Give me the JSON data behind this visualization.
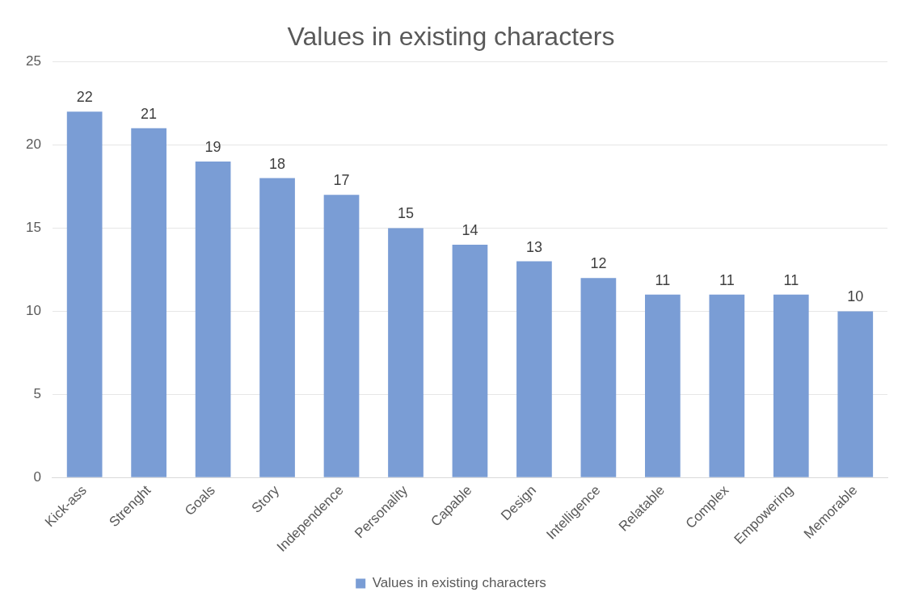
{
  "chart_data": {
    "type": "bar",
    "title": "Values in existing characters",
    "categories": [
      "Kick-ass",
      "Strenght",
      "Goals",
      "Story",
      "Independence",
      "Personality",
      "Capable",
      "Design",
      "Intelligence",
      "Relatable",
      "Complex",
      "Empowering",
      "Memorable"
    ],
    "series": [
      {
        "name": "Values in existing characters",
        "color": "#7a9dd5",
        "values": [
          22,
          21,
          19,
          18,
          17,
          15,
          14,
          13,
          12,
          11,
          11,
          11,
          10
        ]
      }
    ],
    "ylim": [
      0,
      25
    ],
    "yticks": [
      0,
      5,
      10,
      15,
      20,
      25
    ],
    "grid": "y",
    "legend": "bottom",
    "data_labels": true
  }
}
